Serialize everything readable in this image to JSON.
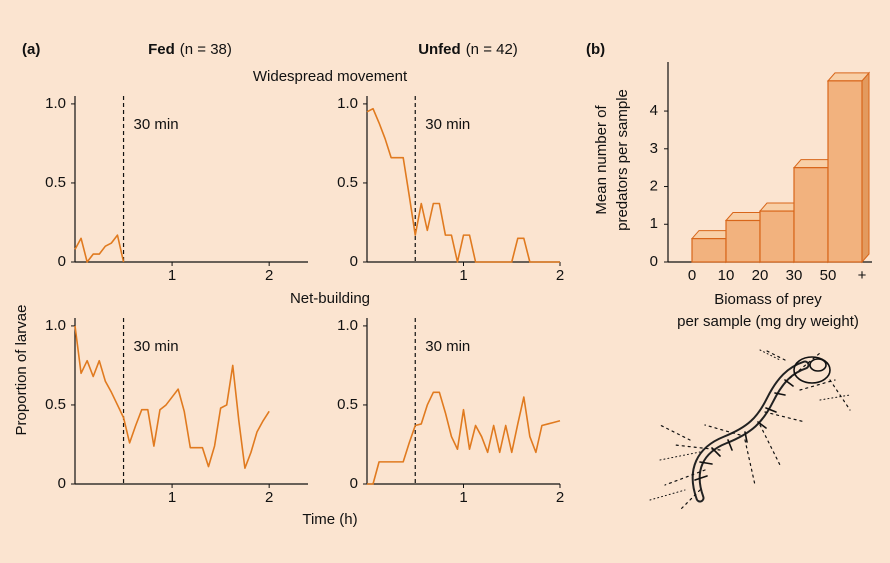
{
  "figure": {
    "panel_a": "(a)",
    "panel_b": "(b)",
    "groups": [
      {
        "name": "Fed",
        "n": "(n = 38)"
      },
      {
        "name": "Unfed",
        "n": "(n = 42)"
      }
    ],
    "rows": [
      "Widespread movement",
      "Net-building"
    ],
    "ylabel": "Proportion of larvae",
    "xlabel": "Time (h)"
  },
  "chart_data": [
    {
      "type": "line",
      "annotation": "30 min",
      "vline": 0.5,
      "x": [
        0,
        0.0625,
        0.125,
        0.1875,
        0.25,
        0.3125,
        0.375,
        0.4375,
        0.5
      ],
      "series": [
        {
          "color": "#e07a1f",
          "values": [
            0.08,
            0.15,
            0,
            0.05,
            0.05,
            0.1,
            0.12,
            0.17,
            0
          ]
        }
      ],
      "xlim": [
        0,
        2.4
      ],
      "xticks": [
        1,
        2
      ],
      "ylim": [
        0,
        1.05
      ],
      "yticks": [
        0,
        0.5,
        {
          "value": 1,
          "label": "1.0"
        }
      ]
    },
    {
      "type": "line",
      "annotation": "30 min",
      "vline": 0.5,
      "x": [
        0,
        0.0625,
        0.125,
        0.1875,
        0.25,
        0.3125,
        0.375,
        0.4375,
        0.5,
        0.5625,
        0.625,
        0.6875,
        0.75,
        0.8125,
        0.875,
        0.9375,
        1,
        1.0625,
        1.125,
        1.1875,
        1.25,
        1.3125,
        1.375,
        1.4375,
        1.5,
        1.5625,
        1.625,
        1.6875,
        1.75,
        1.8125,
        1.875,
        1.9375,
        2
      ],
      "series": [
        {
          "color": "#e07a1f",
          "values": [
            0.95,
            0.97,
            0.88,
            0.78,
            0.66,
            0.66,
            0.66,
            0.42,
            0.17,
            0.37,
            0.2,
            0.37,
            0.37,
            0.17,
            0.17,
            0,
            0.17,
            0.17,
            0,
            0,
            0,
            0,
            0,
            0,
            0,
            0.15,
            0.15,
            0,
            0,
            0,
            0,
            0,
            0
          ]
        }
      ],
      "xlim": [
        0,
        2
      ],
      "xticks": [
        1,
        2
      ],
      "ylim": [
        0,
        1.05
      ],
      "yticks": [
        0,
        0.5,
        {
          "value": 1,
          "label": "1.0"
        }
      ]
    },
    {
      "type": "line",
      "annotation": "30 min",
      "vline": 0.5,
      "x": [
        0,
        0.0625,
        0.125,
        0.1875,
        0.25,
        0.3125,
        0.375,
        0.4375,
        0.5,
        0.5625,
        0.625,
        0.6875,
        0.75,
        0.8125,
        0.875,
        0.9375,
        1,
        1.0625,
        1.125,
        1.1875,
        1.25,
        1.3125,
        1.375,
        1.4375,
        1.5,
        1.5625,
        1.625,
        1.6875,
        1.75,
        1.8125,
        1.875,
        1.9375,
        2
      ],
      "series": [
        {
          "color": "#e07a1f",
          "values": [
            1.0,
            0.7,
            0.78,
            0.68,
            0.78,
            0.65,
            0.58,
            0.5,
            0.42,
            0.26,
            0.37,
            0.47,
            0.47,
            0.24,
            0.47,
            0.5,
            0.55,
            0.6,
            0.46,
            0.23,
            0.23,
            0.23,
            0.11,
            0.24,
            0.48,
            0.5,
            0.75,
            0.4,
            0.1,
            0.2,
            0.33,
            0.4,
            0.46
          ]
        }
      ],
      "xlim": [
        0,
        2.4
      ],
      "xticks": [
        1,
        2
      ],
      "ylim": [
        0,
        1.05
      ],
      "yticks": [
        0,
        0.5,
        {
          "value": 1,
          "label": "1.0"
        }
      ]
    },
    {
      "type": "line",
      "annotation": "30 min",
      "vline": 0.5,
      "x": [
        0,
        0.0625,
        0.125,
        0.1875,
        0.25,
        0.3125,
        0.375,
        0.4375,
        0.5,
        0.5625,
        0.625,
        0.6875,
        0.75,
        0.8125,
        0.875,
        0.9375,
        1,
        1.0625,
        1.125,
        1.1875,
        1.25,
        1.3125,
        1.375,
        1.4375,
        1.5,
        1.5625,
        1.625,
        1.6875,
        1.75,
        1.8125,
        1.875,
        1.9375,
        2
      ],
      "series": [
        {
          "color": "#e07a1f",
          "values": [
            0,
            0,
            0.14,
            0.14,
            0.14,
            0.14,
            0.14,
            0.26,
            0.37,
            0.38,
            0.5,
            0.58,
            0.58,
            0.45,
            0.3,
            0.22,
            0.47,
            0.22,
            0.37,
            0.3,
            0.2,
            0.37,
            0.2,
            0.37,
            0.2,
            0.38,
            0.55,
            0.3,
            0.2,
            0.37,
            0.38,
            0.39,
            0.4
          ]
        }
      ],
      "xlim": [
        0,
        2
      ],
      "xticks": [
        1,
        2
      ],
      "ylim": [
        0,
        1.05
      ],
      "yticks": [
        0,
        0.5,
        {
          "value": 1,
          "label": "1.0"
        }
      ]
    },
    {
      "type": "bar",
      "ylabel": [
        "Mean number of",
        "predators per sample"
      ],
      "xlabel": [
        "Biomass of prey",
        "per sample (mg dry weight)"
      ],
      "bin_labels": [
        "0",
        "10",
        "20",
        "30",
        "50",
        "+"
      ],
      "values": [
        0.62,
        1.1,
        1.35,
        2.5,
        4.8
      ],
      "color": "#f2b27e",
      "edge_color": "#d8661a",
      "ylim": [
        0,
        5.3
      ],
      "yticks": [
        0,
        1,
        2,
        3,
        4
      ]
    }
  ]
}
